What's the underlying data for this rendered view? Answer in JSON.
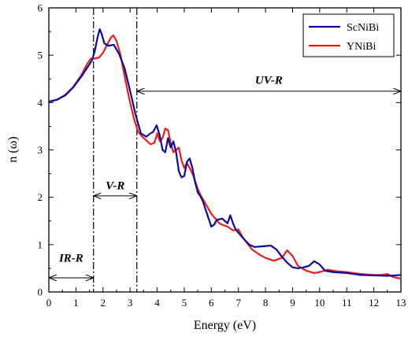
{
  "chart_data": {
    "type": "line",
    "xlabel": "Energy (eV)",
    "ylabel": "n (ω)",
    "xlim": [
      0,
      13
    ],
    "ylim": [
      0,
      6
    ],
    "xticks": [
      "0",
      "1",
      "2",
      "3",
      "4",
      "5",
      "6",
      "7",
      "8",
      "9",
      "10",
      "11",
      "12",
      "13"
    ],
    "yticks": [
      "0",
      "1",
      "2",
      "3",
      "4",
      "5",
      "6"
    ],
    "grid": false,
    "legend_position": "top-right",
    "series": [
      {
        "name": "ScNiBi",
        "color": "#0a0aa0",
        "x": [
          0,
          0.3,
          0.6,
          0.9,
          1.2,
          1.4,
          1.6,
          1.7,
          1.8,
          1.88,
          1.95,
          2.05,
          2.2,
          2.4,
          2.6,
          2.8,
          3.0,
          3.2,
          3.4,
          3.6,
          3.75,
          3.85,
          3.98,
          4.1,
          4.2,
          4.3,
          4.4,
          4.5,
          4.6,
          4.7,
          4.8,
          4.9,
          5.0,
          5.1,
          5.2,
          5.3,
          5.4,
          5.5,
          5.6,
          5.7,
          5.8,
          5.9,
          6.0,
          6.1,
          6.2,
          6.4,
          6.6,
          6.7,
          6.8,
          6.9,
          7.0,
          7.2,
          7.4,
          7.6,
          7.8,
          8.0,
          8.2,
          8.4,
          8.6,
          8.8,
          9.0,
          9.2,
          9.4,
          9.6,
          9.8,
          10.0,
          10.2,
          10.5,
          11.0,
          11.5,
          12.0,
          12.5,
          13.0
        ],
        "y": [
          4.02,
          4.06,
          4.15,
          4.32,
          4.55,
          4.72,
          4.9,
          5.1,
          5.38,
          5.55,
          5.45,
          5.25,
          5.2,
          5.22,
          5.02,
          4.72,
          4.25,
          3.75,
          3.35,
          3.28,
          3.35,
          3.38,
          3.52,
          3.3,
          3.0,
          2.95,
          3.25,
          3.05,
          3.18,
          2.95,
          2.55,
          2.42,
          2.45,
          2.75,
          2.82,
          2.62,
          2.32,
          2.1,
          2.02,
          1.9,
          1.72,
          1.55,
          1.38,
          1.42,
          1.52,
          1.55,
          1.45,
          1.62,
          1.45,
          1.32,
          1.25,
          1.12,
          1.0,
          0.95,
          0.96,
          0.97,
          0.98,
          0.9,
          0.75,
          0.62,
          0.52,
          0.5,
          0.52,
          0.55,
          0.65,
          0.58,
          0.45,
          0.42,
          0.4,
          0.36,
          0.35,
          0.34,
          0.36
        ]
      },
      {
        "name": "YNiBi",
        "color": "#ee1c1c",
        "x": [
          0,
          0.3,
          0.6,
          0.9,
          1.2,
          1.4,
          1.55,
          1.7,
          1.85,
          2.0,
          2.15,
          2.3,
          2.38,
          2.5,
          2.65,
          2.8,
          3.0,
          3.15,
          3.3,
          3.45,
          3.6,
          3.75,
          3.9,
          4.0,
          4.1,
          4.2,
          4.3,
          4.4,
          4.5,
          4.6,
          4.7,
          4.8,
          4.9,
          5.0,
          5.1,
          5.2,
          5.3,
          5.4,
          5.5,
          5.6,
          5.7,
          5.8,
          5.9,
          6.0,
          6.1,
          6.2,
          6.3,
          6.4,
          6.6,
          6.8,
          7.0,
          7.2,
          7.5,
          7.8,
          8.0,
          8.3,
          8.6,
          8.8,
          9.0,
          9.2,
          9.5,
          9.8,
          10.0,
          10.3,
          10.6,
          11.0,
          11.5,
          12.0,
          12.3,
          12.5,
          12.7,
          13.0
        ],
        "y": [
          4.02,
          4.06,
          4.16,
          4.33,
          4.58,
          4.8,
          4.93,
          4.93,
          4.95,
          5.05,
          5.22,
          5.38,
          5.42,
          5.3,
          5.0,
          4.55,
          4.0,
          3.65,
          3.38,
          3.28,
          3.2,
          3.12,
          3.15,
          3.35,
          3.18,
          3.25,
          3.45,
          3.42,
          3.15,
          2.95,
          3.0,
          3.05,
          2.78,
          2.62,
          2.72,
          2.62,
          2.5,
          2.35,
          2.18,
          2.05,
          1.95,
          1.85,
          1.75,
          1.65,
          1.58,
          1.52,
          1.45,
          1.42,
          1.38,
          1.3,
          1.32,
          1.12,
          0.9,
          0.78,
          0.72,
          0.66,
          0.72,
          0.88,
          0.76,
          0.55,
          0.45,
          0.4,
          0.42,
          0.47,
          0.44,
          0.42,
          0.38,
          0.36,
          0.36,
          0.38,
          0.32,
          0.28
        ]
      }
    ],
    "vlines": [
      1.65,
      3.25
    ],
    "regions": [
      {
        "label": "IR-R",
        "x_start": 0,
        "x_end": 1.65,
        "y": 0.3,
        "label_y": 0.72
      },
      {
        "label": "V-R",
        "x_start": 1.65,
        "x_end": 3.25,
        "y": 2.03,
        "label_y": 2.25
      },
      {
        "label": "UV-R",
        "x_start": 3.25,
        "x_end": 13,
        "y": 4.24,
        "label_y": 4.48
      }
    ]
  }
}
